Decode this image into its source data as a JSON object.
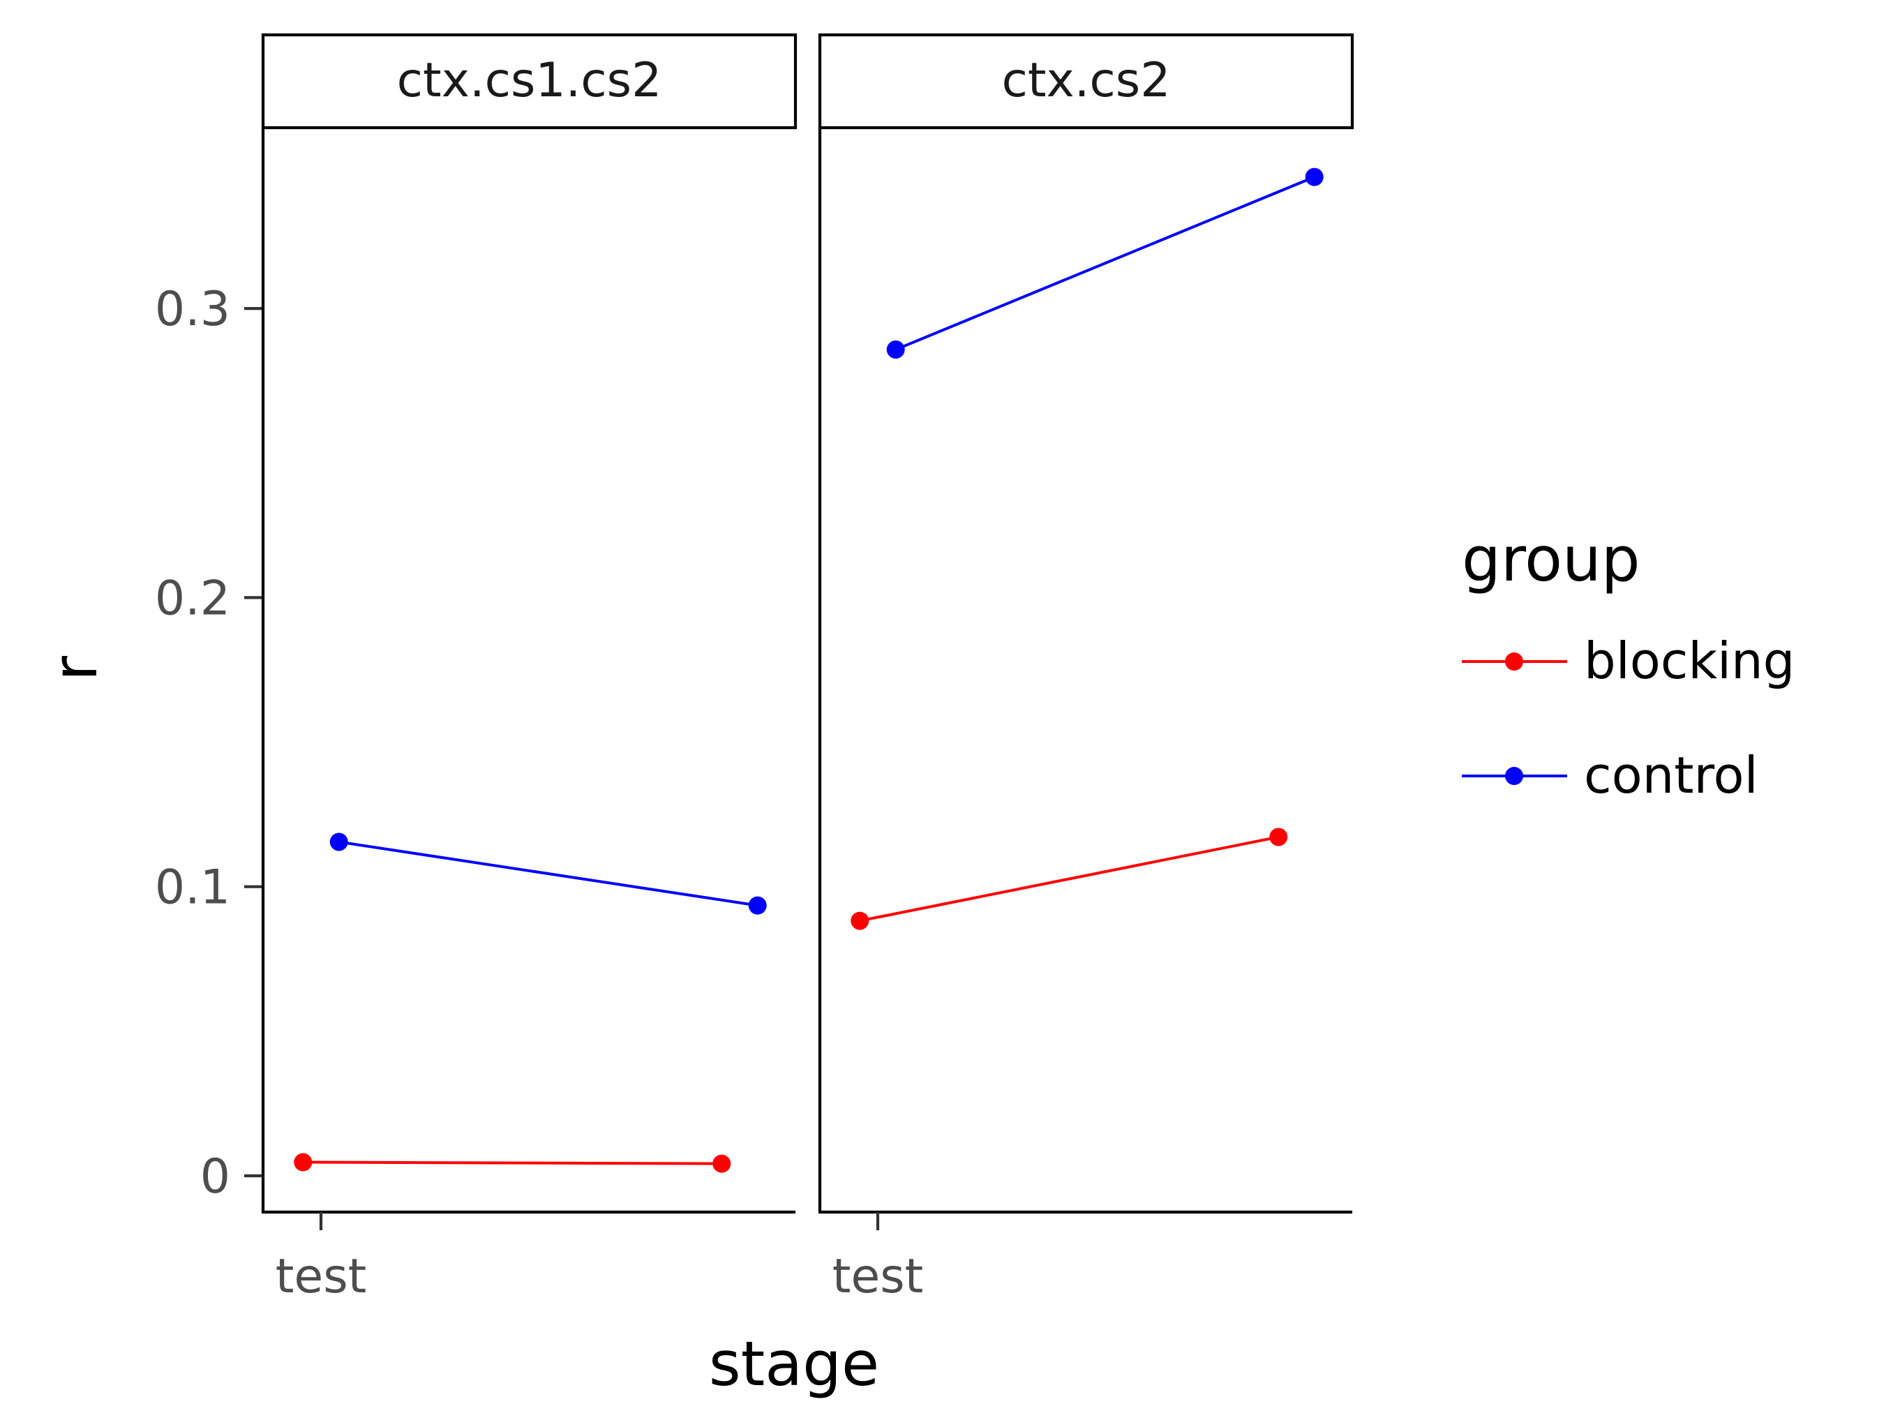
{
  "chart_data": {
    "type": "line",
    "xlabel": "stage",
    "ylabel": "r",
    "ylim": [
      -0.013,
      0.362
    ],
    "yticks": [
      0,
      0.1,
      0.2,
      0.3
    ],
    "ytick_labels": [
      "0",
      "0.1",
      "0.2",
      "0.3"
    ],
    "xtick_labels": [
      "test"
    ],
    "grid": false,
    "legend": {
      "title": "group",
      "position": "right",
      "entries": [
        {
          "name": "blocking",
          "color": "#ff0000"
        },
        {
          "name": "control",
          "color": "#0000ff"
        }
      ]
    },
    "facets": [
      {
        "label": "ctx.cs1.cs2",
        "series": [
          {
            "name": "blocking",
            "color": "#ff0000",
            "points": [
              {
                "x": -0.03,
                "y": 0.0047
              },
              {
                "x": 0.67,
                "y": 0.0042
              }
            ]
          },
          {
            "name": "control",
            "color": "#0000ff",
            "points": [
              {
                "x": 0.03,
                "y": 0.1155
              },
              {
                "x": 0.73,
                "y": 0.0935
              }
            ]
          }
        ]
      },
      {
        "label": "ctx.cs2",
        "series": [
          {
            "name": "blocking",
            "color": "#ff0000",
            "points": [
              {
                "x": -0.03,
                "y": 0.0882
              },
              {
                "x": 0.67,
                "y": 0.1172
              }
            ]
          },
          {
            "name": "control",
            "color": "#0000ff",
            "points": [
              {
                "x": 0.03,
                "y": 0.2858
              },
              {
                "x": 0.73,
                "y": 0.3455
              }
            ]
          }
        ]
      }
    ]
  }
}
